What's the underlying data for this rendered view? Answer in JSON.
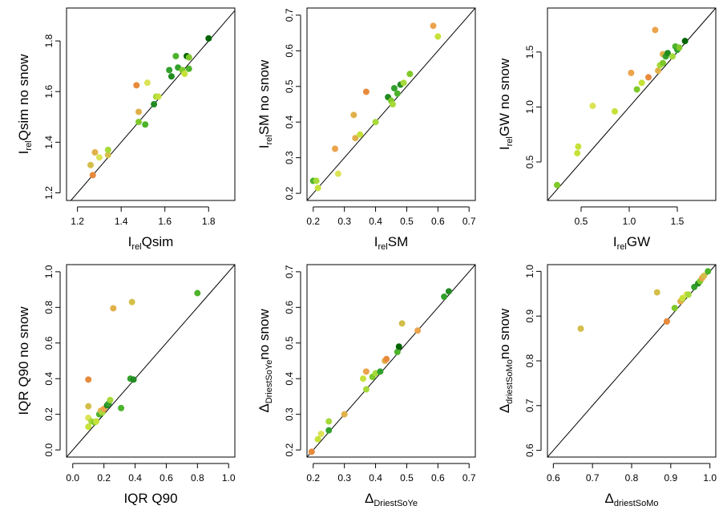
{
  "figure": {
    "point_colors": [
      "#006400",
      "#228B22",
      "#32A02D",
      "#4DB32B",
      "#7FC92A",
      "#A6D93A",
      "#C6E23A",
      "#DCE356",
      "#D4BE4A",
      "#E0B04A",
      "#EBA34C",
      "#E78A3C"
    ]
  },
  "chart_data": [
    {
      "type": "scatter",
      "xlabel": {
        "main": "I",
        "sub": "rel",
        "rest": "Qsim"
      },
      "ylabel": {
        "main": "I",
        "sub": "rel",
        "rest": "Qsim no snow"
      },
      "xlim": [
        1.15,
        1.92
      ],
      "ylim": [
        1.17,
        1.93
      ],
      "xticks": [
        1.2,
        1.4,
        1.6,
        1.8
      ],
      "yticks": [
        1.2,
        1.4,
        1.6,
        1.8
      ],
      "xtick_labels": [
        "1.2",
        "1.4",
        "1.6",
        "1.8"
      ],
      "ytick_labels": [
        "1.2",
        "1.4",
        "1.6",
        "1.8"
      ],
      "reference_line": "y=x",
      "grid": false,
      "points": [
        {
          "x": 1.26,
          "y": 1.31,
          "c": 8
        },
        {
          "x": 1.27,
          "y": 1.27,
          "c": 11
        },
        {
          "x": 1.28,
          "y": 1.36,
          "c": 9
        },
        {
          "x": 1.3,
          "y": 1.34,
          "c": 7
        },
        {
          "x": 1.34,
          "y": 1.35,
          "c": 8
        },
        {
          "x": 1.34,
          "y": 1.37,
          "c": 5
        },
        {
          "x": 1.47,
          "y": 1.625,
          "c": 11
        },
        {
          "x": 1.48,
          "y": 1.52,
          "c": 9
        },
        {
          "x": 1.48,
          "y": 1.48,
          "c": 4
        },
        {
          "x": 1.51,
          "y": 1.47,
          "c": 3
        },
        {
          "x": 1.52,
          "y": 1.635,
          "c": 7
        },
        {
          "x": 1.55,
          "y": 1.55,
          "c": 1
        },
        {
          "x": 1.56,
          "y": 1.58,
          "c": 5
        },
        {
          "x": 1.57,
          "y": 1.58,
          "c": 6
        },
        {
          "x": 1.62,
          "y": 1.685,
          "c": 2
        },
        {
          "x": 1.63,
          "y": 1.66,
          "c": 1
        },
        {
          "x": 1.65,
          "y": 1.74,
          "c": 3
        },
        {
          "x": 1.66,
          "y": 1.695,
          "c": 2
        },
        {
          "x": 1.68,
          "y": 1.685,
          "c": 4
        },
        {
          "x": 1.69,
          "y": 1.67,
          "c": 6
        },
        {
          "x": 1.7,
          "y": 1.74,
          "c": 0
        },
        {
          "x": 1.71,
          "y": 1.69,
          "c": 3
        },
        {
          "x": 1.71,
          "y": 1.735,
          "c": 4
        },
        {
          "x": 1.8,
          "y": 1.81,
          "c": 0
        }
      ]
    },
    {
      "type": "scatter",
      "xlabel": {
        "main": "I",
        "sub": "rel",
        "rest": "SM"
      },
      "ylabel": {
        "main": "I",
        "sub": "rel",
        "rest": "SM no snow"
      },
      "xlim": [
        0.18,
        0.72
      ],
      "ylim": [
        0.18,
        0.72
      ],
      "xticks": [
        0.2,
        0.3,
        0.4,
        0.5,
        0.6,
        0.7
      ],
      "yticks": [
        0.2,
        0.3,
        0.4,
        0.5,
        0.6,
        0.7
      ],
      "xtick_labels": [
        "0.2",
        "0.3",
        "0.4",
        "0.5",
        "0.6",
        "0.7"
      ],
      "ytick_labels": [
        "0.2",
        "0.3",
        "0.4",
        "0.5",
        "0.6",
        "0.7"
      ],
      "reference_line": "y=x",
      "grid": false,
      "points": [
        {
          "x": 0.2,
          "y": 0.235,
          "c": 3
        },
        {
          "x": 0.21,
          "y": 0.235,
          "c": 5
        },
        {
          "x": 0.215,
          "y": 0.215,
          "c": 6
        },
        {
          "x": 0.27,
          "y": 0.325,
          "c": 10
        },
        {
          "x": 0.28,
          "y": 0.255,
          "c": 7
        },
        {
          "x": 0.33,
          "y": 0.42,
          "c": 9
        },
        {
          "x": 0.335,
          "y": 0.355,
          "c": 9
        },
        {
          "x": 0.35,
          "y": 0.365,
          "c": 6
        },
        {
          "x": 0.37,
          "y": 0.485,
          "c": 11
        },
        {
          "x": 0.4,
          "y": 0.4,
          "c": 5
        },
        {
          "x": 0.44,
          "y": 0.47,
          "c": 1
        },
        {
          "x": 0.45,
          "y": 0.46,
          "c": 4
        },
        {
          "x": 0.455,
          "y": 0.45,
          "c": 5
        },
        {
          "x": 0.46,
          "y": 0.495,
          "c": 2
        },
        {
          "x": 0.47,
          "y": 0.48,
          "c": 3
        },
        {
          "x": 0.48,
          "y": 0.505,
          "c": 1
        },
        {
          "x": 0.49,
          "y": 0.51,
          "c": 5
        },
        {
          "x": 0.51,
          "y": 0.535,
          "c": 4
        },
        {
          "x": 0.585,
          "y": 0.67,
          "c": 10
        },
        {
          "x": 0.6,
          "y": 0.64,
          "c": 6
        }
      ]
    },
    {
      "type": "scatter",
      "xlabel": {
        "main": "I",
        "sub": "rel",
        "rest": "GW"
      },
      "ylabel": {
        "main": "I",
        "sub": "rel",
        "rest": "GW no snow"
      },
      "xlim": [
        0.15,
        1.9
      ],
      "ylim": [
        0.15,
        1.9
      ],
      "xticks": [
        0.5,
        1.0,
        1.5
      ],
      "yticks": [
        0.5,
        1.0,
        1.5
      ],
      "xtick_labels": [
        "0.5",
        "1.0",
        "1.5"
      ],
      "ytick_labels": [
        "0.5",
        "1.0",
        "1.5"
      ],
      "reference_line": "y=x",
      "grid": false,
      "points": [
        {
          "x": 0.25,
          "y": 0.29,
          "c": 4
        },
        {
          "x": 0.46,
          "y": 0.58,
          "c": 6
        },
        {
          "x": 0.47,
          "y": 0.64,
          "c": 6
        },
        {
          "x": 0.62,
          "y": 1.01,
          "c": 7
        },
        {
          "x": 0.85,
          "y": 0.96,
          "c": 6
        },
        {
          "x": 1.02,
          "y": 1.31,
          "c": 10
        },
        {
          "x": 1.08,
          "y": 1.16,
          "c": 4
        },
        {
          "x": 1.13,
          "y": 1.22,
          "c": 6
        },
        {
          "x": 1.2,
          "y": 1.27,
          "c": 11
        },
        {
          "x": 1.27,
          "y": 1.7,
          "c": 10
        },
        {
          "x": 1.3,
          "y": 1.33,
          "c": 9
        },
        {
          "x": 1.32,
          "y": 1.38,
          "c": 5
        },
        {
          "x": 1.35,
          "y": 1.4,
          "c": 4
        },
        {
          "x": 1.35,
          "y": 1.48,
          "c": 9
        },
        {
          "x": 1.38,
          "y": 1.46,
          "c": 2
        },
        {
          "x": 1.4,
          "y": 1.49,
          "c": 1
        },
        {
          "x": 1.45,
          "y": 1.46,
          "c": 5
        },
        {
          "x": 1.48,
          "y": 1.55,
          "c": 3
        },
        {
          "x": 1.5,
          "y": 1.52,
          "c": 2
        },
        {
          "x": 1.52,
          "y": 1.54,
          "c": 4
        },
        {
          "x": 1.58,
          "y": 1.6,
          "c": 0
        }
      ]
    },
    {
      "type": "scatter",
      "xlabel": {
        "main": "IQR Q90",
        "sub": "",
        "rest": ""
      },
      "ylabel": {
        "main": "IQR Q90 no snow",
        "sub": "",
        "rest": ""
      },
      "xlim": [
        -0.04,
        1.04
      ],
      "ylim": [
        -0.04,
        1.04
      ],
      "xticks": [
        0.0,
        0.2,
        0.4,
        0.6,
        0.8,
        1.0
      ],
      "yticks": [
        0.0,
        0.2,
        0.4,
        0.6,
        0.8,
        1.0
      ],
      "xtick_labels": [
        "0.0",
        "0.2",
        "0.4",
        "0.6",
        "0.8",
        "1.0"
      ],
      "ytick_labels": [
        "0.0",
        "0.2",
        "0.4",
        "0.6",
        "0.8",
        "1.0"
      ],
      "reference_line": "y=x",
      "grid": false,
      "points": [
        {
          "x": 0.1,
          "y": 0.13,
          "c": 6
        },
        {
          "x": 0.1,
          "y": 0.18,
          "c": 7
        },
        {
          "x": 0.1,
          "y": 0.245,
          "c": 8
        },
        {
          "x": 0.1,
          "y": 0.395,
          "c": 11
        },
        {
          "x": 0.12,
          "y": 0.16,
          "c": 5
        },
        {
          "x": 0.14,
          "y": 0.155,
          "c": 4
        },
        {
          "x": 0.15,
          "y": 0.16,
          "c": 6
        },
        {
          "x": 0.17,
          "y": 0.2,
          "c": 3
        },
        {
          "x": 0.18,
          "y": 0.22,
          "c": 9
        },
        {
          "x": 0.19,
          "y": 0.21,
          "c": 5
        },
        {
          "x": 0.2,
          "y": 0.23,
          "c": 10
        },
        {
          "x": 0.22,
          "y": 0.25,
          "c": 1
        },
        {
          "x": 0.23,
          "y": 0.26,
          "c": 2
        },
        {
          "x": 0.24,
          "y": 0.28,
          "c": 5
        },
        {
          "x": 0.26,
          "y": 0.795,
          "c": 9
        },
        {
          "x": 0.31,
          "y": 0.235,
          "c": 3
        },
        {
          "x": 0.37,
          "y": 0.4,
          "c": 2
        },
        {
          "x": 0.38,
          "y": 0.83,
          "c": 8
        },
        {
          "x": 0.39,
          "y": 0.395,
          "c": 1
        },
        {
          "x": 0.8,
          "y": 0.88,
          "c": 3
        }
      ]
    },
    {
      "type": "scatter",
      "xlabel": {
        "main": "Δ",
        "sub": "DriestSoYe",
        "rest": ""
      },
      "ylabel": {
        "main": "Δ",
        "sub": "DriestSoYe",
        "rest": "no snow"
      },
      "xlim": [
        0.18,
        0.72
      ],
      "ylim": [
        0.18,
        0.72
      ],
      "xticks": [
        0.2,
        0.3,
        0.4,
        0.5,
        0.6,
        0.7
      ],
      "yticks": [
        0.2,
        0.3,
        0.4,
        0.5,
        0.6,
        0.7
      ],
      "xtick_labels": [
        "0.2",
        "0.3",
        "0.4",
        "0.5",
        "0.6",
        "0.7"
      ],
      "ytick_labels": [
        "0.2",
        "0.3",
        "0.4",
        "0.5",
        "0.6",
        "0.7"
      ],
      "reference_line": "y=x",
      "grid": false,
      "points": [
        {
          "x": 0.195,
          "y": 0.195,
          "c": 11
        },
        {
          "x": 0.215,
          "y": 0.23,
          "c": 6
        },
        {
          "x": 0.225,
          "y": 0.245,
          "c": 7
        },
        {
          "x": 0.25,
          "y": 0.255,
          "c": 2
        },
        {
          "x": 0.25,
          "y": 0.28,
          "c": 5
        },
        {
          "x": 0.3,
          "y": 0.3,
          "c": 9
        },
        {
          "x": 0.36,
          "y": 0.4,
          "c": 6
        },
        {
          "x": 0.37,
          "y": 0.37,
          "c": 5
        },
        {
          "x": 0.37,
          "y": 0.42,
          "c": 10
        },
        {
          "x": 0.39,
          "y": 0.405,
          "c": 4
        },
        {
          "x": 0.4,
          "y": 0.415,
          "c": 5
        },
        {
          "x": 0.415,
          "y": 0.42,
          "c": 2
        },
        {
          "x": 0.43,
          "y": 0.45,
          "c": 9
        },
        {
          "x": 0.435,
          "y": 0.455,
          "c": 11
        },
        {
          "x": 0.47,
          "y": 0.475,
          "c": 3
        },
        {
          "x": 0.475,
          "y": 0.49,
          "c": 0
        },
        {
          "x": 0.485,
          "y": 0.555,
          "c": 8
        },
        {
          "x": 0.535,
          "y": 0.535,
          "c": 10
        },
        {
          "x": 0.62,
          "y": 0.63,
          "c": 2
        },
        {
          "x": 0.635,
          "y": 0.645,
          "c": 1
        }
      ]
    },
    {
      "type": "scatter",
      "xlabel": {
        "main": "Δ",
        "sub": "driestSoMo",
        "rest": ""
      },
      "ylabel": {
        "main": "Δ",
        "sub": "driestSoMo",
        "rest": "no snow"
      },
      "xlim": [
        0.585,
        1.015
      ],
      "ylim": [
        0.585,
        1.015
      ],
      "xticks": [
        0.6,
        0.7,
        0.8,
        0.9,
        1.0
      ],
      "yticks": [
        0.6,
        0.7,
        0.8,
        0.9,
        1.0
      ],
      "xtick_labels": [
        "0.6",
        "0.7",
        "0.8",
        "0.9",
        "1.0"
      ],
      "ytick_labels": [
        "0.6",
        "0.7",
        "0.8",
        "0.9",
        "1.0"
      ],
      "reference_line": "y=x",
      "grid": false,
      "points": [
        {
          "x": 0.67,
          "y": 0.872,
          "c": 8
        },
        {
          "x": 0.865,
          "y": 0.953,
          "c": 8
        },
        {
          "x": 0.89,
          "y": 0.888,
          "c": 11
        },
        {
          "x": 0.91,
          "y": 0.918,
          "c": 4
        },
        {
          "x": 0.925,
          "y": 0.933,
          "c": 9
        },
        {
          "x": 0.93,
          "y": 0.94,
          "c": 6
        },
        {
          "x": 0.94,
          "y": 0.948,
          "c": 7
        },
        {
          "x": 0.945,
          "y": 0.948,
          "c": 5
        },
        {
          "x": 0.96,
          "y": 0.965,
          "c": 2
        },
        {
          "x": 0.97,
          "y": 0.973,
          "c": 1
        },
        {
          "x": 0.975,
          "y": 0.978,
          "c": 4
        },
        {
          "x": 0.98,
          "y": 0.985,
          "c": 10
        },
        {
          "x": 0.985,
          "y": 0.99,
          "c": 8
        },
        {
          "x": 0.995,
          "y": 1.0,
          "c": 3
        }
      ]
    }
  ]
}
